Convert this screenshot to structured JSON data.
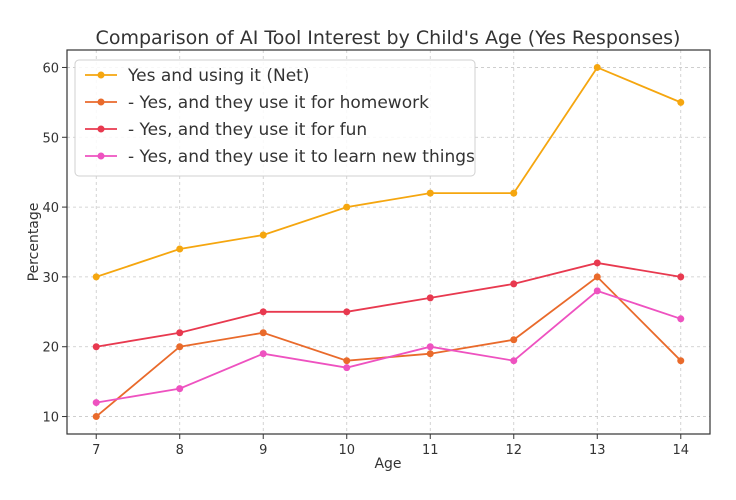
{
  "chart_data": {
    "type": "line",
    "title": "Comparison of AI Tool Interest by Child's Age (Yes Responses)",
    "xlabel": "Age",
    "ylabel": "Percentage",
    "x": [
      7,
      8,
      9,
      10,
      11,
      12,
      13,
      14
    ],
    "xlim": [
      6.65,
      14.35
    ],
    "ylim": [
      7.5,
      62.5
    ],
    "yticks": [
      10,
      20,
      30,
      40,
      50,
      60
    ],
    "grid": true,
    "legend_position": "top-left",
    "series": [
      {
        "name": "Yes and using it (Net)",
        "color": "#f5a60f",
        "values": [
          30,
          34,
          36,
          40,
          42,
          42,
          60,
          55
        ]
      },
      {
        "name": "- Yes, and they use it for homework",
        "color": "#e96a2b",
        "values": [
          10,
          20,
          22,
          18,
          19,
          21,
          30,
          18
        ]
      },
      {
        "name": "- Yes, and they use it for fun",
        "color": "#e8394f",
        "values": [
          20,
          22,
          25,
          25,
          27,
          29,
          32,
          30
        ]
      },
      {
        "name": "- Yes, and they use it to learn new things",
        "color": "#ee52c0",
        "values": [
          12,
          14,
          19,
          17,
          20,
          18,
          28,
          24
        ]
      }
    ]
  }
}
